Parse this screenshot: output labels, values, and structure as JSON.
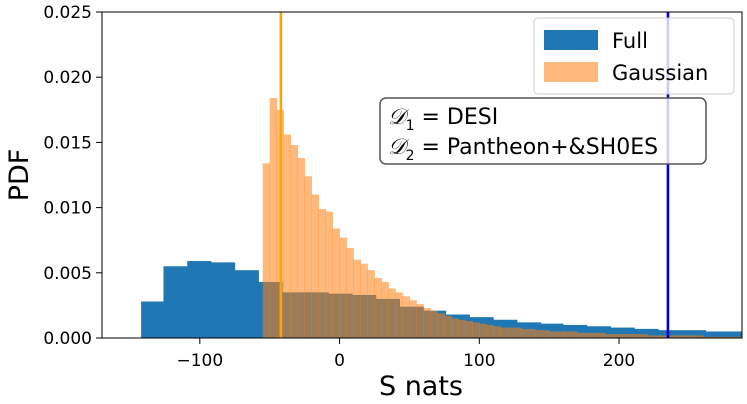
{
  "chart_data": {
    "type": "histogram",
    "xlabel": "S nats",
    "ylabel": "PDF",
    "xlim": [
      -170,
      288
    ],
    "ylim": [
      0,
      0.025
    ],
    "xticks": [
      -100,
      0,
      100,
      200
    ],
    "xtick_labels": [
      "−100",
      "0",
      "100",
      "200"
    ],
    "yticks": [
      0,
      0.005,
      0.01,
      0.015,
      0.02,
      0.025
    ],
    "ytick_labels": [
      "0.000",
      "0.005",
      "0.010",
      "0.015",
      "0.020",
      "0.025"
    ],
    "legend": {
      "location": "top-right",
      "entries": [
        {
          "label": "Full",
          "color": "#1f77b4"
        },
        {
          "label": "Gaussian",
          "color": "#ff7f0e"
        }
      ]
    },
    "annotation": {
      "line1": {
        "sym": "𝒟",
        "sub": "1",
        "rest": " = DESI"
      },
      "line2": {
        "sym": "𝒟",
        "sub": "2",
        "rest": " = Pantheon+&SH0ES"
      }
    },
    "vlines": [
      {
        "name": "gaussian-estimate-line",
        "x": -42,
        "color": "#ffa500"
      },
      {
        "name": "full-estimate-line",
        "x": 235,
        "color": "#0000cd"
      }
    ],
    "series": [
      {
        "name": "Full",
        "color": "#1f77b4",
        "alpha": 1.0,
        "bin_edges": [
          -142,
          -126,
          -109,
          -92,
          -75,
          -58,
          -41,
          -25,
          -8,
          9,
          26,
          43,
          60,
          76,
          93,
          110,
          127,
          144,
          160,
          177,
          194,
          211,
          228,
          245,
          262,
          288
        ],
        "values": [
          0.0028,
          0.0055,
          0.0059,
          0.0058,
          0.0052,
          0.0043,
          0.0035,
          0.0035,
          0.0034,
          0.0033,
          0.003,
          0.0024,
          0.0021,
          0.0018,
          0.0016,
          0.0014,
          0.0012,
          0.0011,
          0.001,
          0.0009,
          0.0008,
          0.0007,
          0.0006,
          0.0006,
          0.0005
        ]
      },
      {
        "name": "Gaussian",
        "color": "#ff7f0e",
        "alpha": 0.55,
        "bin_edges": [
          -55,
          -50,
          -45,
          -40,
          -35,
          -30,
          -25,
          -20,
          -15,
          -10,
          -5,
          0,
          5,
          10,
          15,
          20,
          25,
          30,
          35,
          40,
          45,
          50,
          55,
          60,
          65,
          70,
          75,
          80,
          85,
          90,
          95,
          100,
          105,
          110,
          115,
          120,
          130,
          140,
          150,
          160,
          170,
          180,
          190,
          200,
          210,
          220,
          230,
          240,
          250,
          260,
          270,
          288
        ],
        "values": [
          0.0134,
          0.0184,
          0.0175,
          0.0156,
          0.0148,
          0.0138,
          0.0124,
          0.011,
          0.0099,
          0.0097,
          0.0084,
          0.0077,
          0.0069,
          0.006,
          0.0057,
          0.0052,
          0.0046,
          0.0043,
          0.0038,
          0.0035,
          0.0032,
          0.0029,
          0.0026,
          0.0023,
          0.0021,
          0.0019,
          0.0017,
          0.0015,
          0.0014,
          0.0013,
          0.0012,
          0.0011,
          0.001,
          0.0009,
          0.0008,
          0.0008,
          0.0007,
          0.0006,
          0.0005,
          0.0005,
          0.0004,
          0.0004,
          0.0003,
          0.0003,
          0.0003,
          0.0002,
          0.0002,
          0.0002,
          0.0002,
          0.0001,
          0.0001
        ]
      }
    ]
  }
}
